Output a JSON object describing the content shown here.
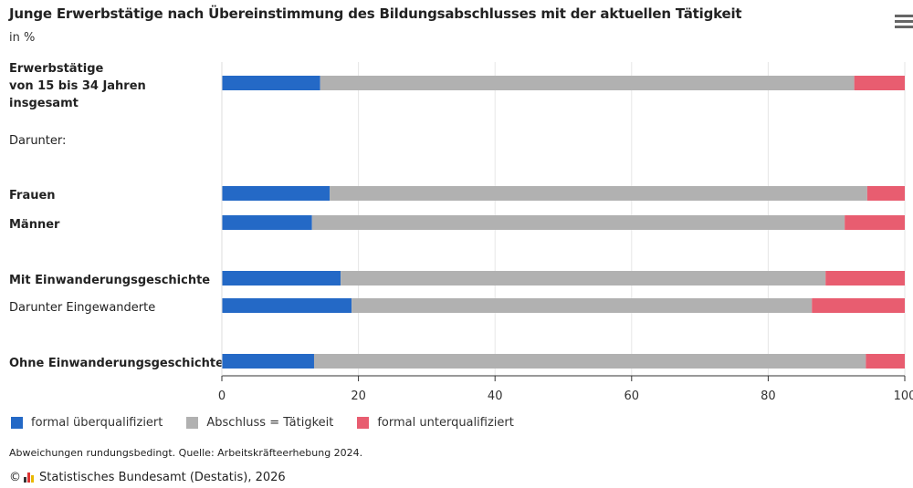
{
  "header": {
    "title": "Junge Erwerbstätige nach Übereinstimmung des Bildungsabschlusses mit der aktuellen Tätigkeit",
    "unit": "in %",
    "menu_icon": "hamburger-menu-icon"
  },
  "chart_data": {
    "type": "bar",
    "orientation": "horizontal",
    "stacked": true,
    "title": "Junge Erwerbstätige nach Übereinstimmung des Bildungsabschlusses mit der aktuellen Tätigkeit",
    "subtitle": "in %",
    "categories": [
      "Erwerbstätige von 15 bis 34 Jahren insgesamt",
      "Frauen",
      "Männer",
      "Mit Einwanderungsgeschichte",
      "Darunter Eingewanderte",
      "Ohne Einwanderungsgeschichte"
    ],
    "category_label_lines": [
      [
        "Erwerbstätige",
        "von 15 bis 34 Jahren",
        "insgesamt"
      ],
      [
        "Frauen"
      ],
      [
        "Männer"
      ],
      [
        "Mit Einwanderungsgeschichte"
      ],
      [
        "Darunter Eingewanderte"
      ],
      [
        "Ohne Einwanderungsgeschichte"
      ]
    ],
    "category_bold": [
      true,
      true,
      true,
      true,
      false,
      true
    ],
    "group_header": "Darunter:",
    "series": [
      {
        "name": "formal überqualifiziert",
        "color": "#2469c6",
        "values": [
          14.4,
          15.8,
          13.2,
          17.4,
          19.0,
          13.5
        ]
      },
      {
        "name": "Abschluss = Tätigkeit",
        "color": "#b1b1b1",
        "values": [
          78.2,
          78.7,
          78.0,
          71.0,
          67.4,
          80.8
        ]
      },
      {
        "name": "formal unterqualifiziert",
        "color": "#e85d70",
        "values": [
          7.4,
          5.5,
          8.8,
          11.6,
          13.6,
          5.7
        ]
      }
    ],
    "xlim": [
      0,
      100
    ],
    "xticks": [
      "0",
      "20",
      "40",
      "60",
      "80",
      "100"
    ],
    "xtick_values": [
      0,
      20,
      40,
      60,
      80,
      100
    ],
    "grid": true,
    "legend_position": "bottom-left"
  },
  "footer": {
    "note": "Abweichungen rundungsbedingt. Quelle: Arbeitskräfteerhebung 2024.",
    "copyright_symbol": "©",
    "credit": "Statistisches Bundesamt (Destatis), 2026"
  }
}
